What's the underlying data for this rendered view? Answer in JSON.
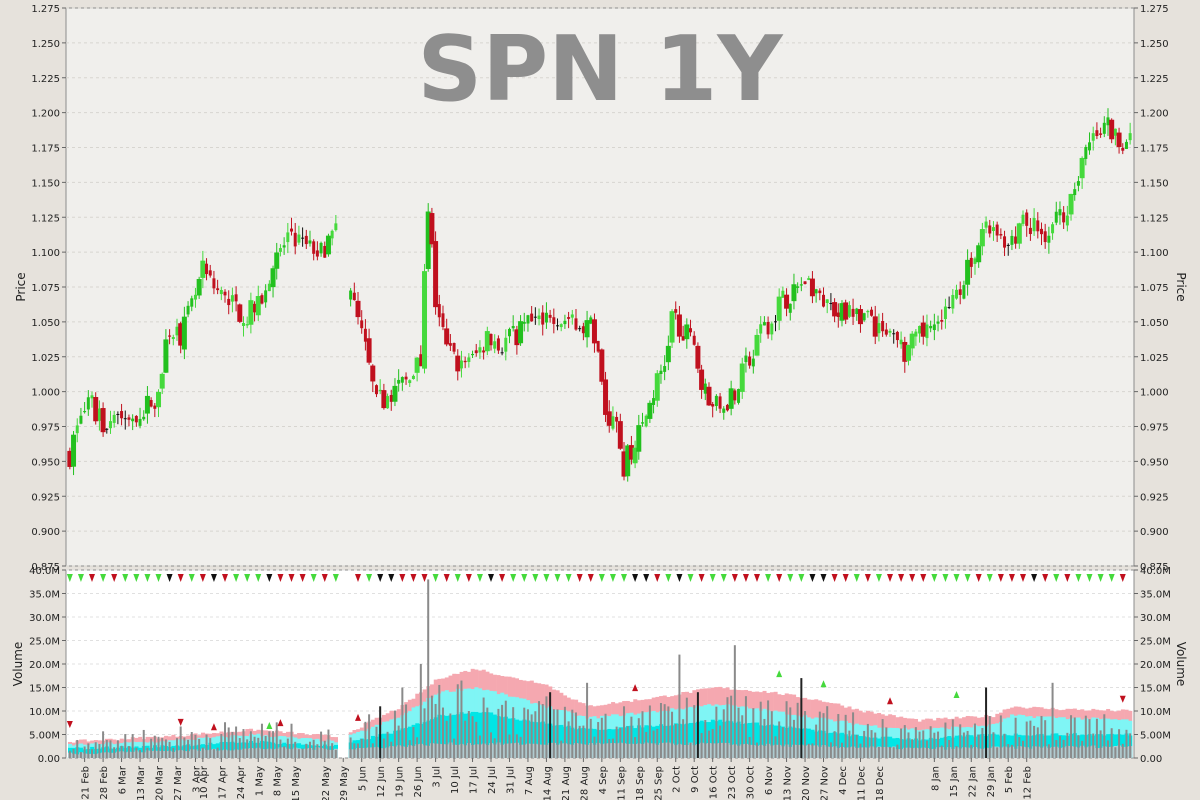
{
  "chart_data": [
    {
      "type": "candlestick",
      "title": "SPN 1Y",
      "ylabel": "Price",
      "ylim": [
        0.875,
        1.275
      ],
      "yticks": [
        "0.875",
        "0.900",
        "0.925",
        "0.950",
        "0.975",
        "1.000",
        "1.025",
        "1.050",
        "1.075",
        "1.100",
        "1.125",
        "1.150",
        "1.175",
        "1.200",
        "1.225",
        "1.250",
        "1.275"
      ],
      "grid": true,
      "ohlc_close_path": [
        [
          0,
          0.955
        ],
        [
          3,
          0.985
        ],
        [
          6,
          0.99
        ],
        [
          9,
          0.975
        ],
        [
          12,
          0.985
        ],
        [
          15,
          0.98
        ],
        [
          18,
          0.985
        ],
        [
          21,
          0.99
        ],
        [
          24,
          1.0
        ],
        [
          27,
          1.045
        ],
        [
          30,
          1.04
        ],
        [
          33,
          1.06
        ],
        [
          36,
          1.085
        ],
        [
          39,
          1.075
        ],
        [
          42,
          1.065
        ],
        [
          45,
          1.06
        ],
        [
          48,
          1.055
        ],
        [
          51,
          1.06
        ],
        [
          54,
          1.085
        ],
        [
          57,
          1.1
        ],
        [
          60,
          1.115
        ],
        [
          63,
          1.105
        ],
        [
          66,
          1.1
        ],
        [
          69,
          1.105
        ],
        [
          72,
          1.115
        ],
        [
          77,
          1.06
        ],
        [
          80,
          1.03
        ],
        [
          83,
          0.99
        ],
        [
          86,
          1.0
        ],
        [
          89,
          1.0
        ],
        [
          92,
          1.015
        ],
        [
          95,
          1.02
        ],
        [
          97,
          1.135
        ],
        [
          99,
          1.065
        ],
        [
          102,
          1.03
        ],
        [
          105,
          1.02
        ],
        [
          108,
          1.02
        ],
        [
          111,
          1.03
        ],
        [
          114,
          1.04
        ],
        [
          117,
          1.035
        ],
        [
          120,
          1.04
        ],
        [
          123,
          1.045
        ],
        [
          126,
          1.05
        ],
        [
          129,
          1.06
        ],
        [
          132,
          1.055
        ],
        [
          135,
          1.045
        ],
        [
          138,
          1.05
        ],
        [
          141,
          1.045
        ],
        [
          143,
          1.025
        ],
        [
          145,
          0.985
        ],
        [
          148,
          0.975
        ],
        [
          150,
          0.945
        ],
        [
          152,
          0.96
        ],
        [
          155,
          0.975
        ],
        [
          158,
          1.0
        ],
        [
          161,
          1.02
        ],
        [
          163,
          1.055
        ],
        [
          166,
          1.045
        ],
        [
          169,
          1.03
        ],
        [
          172,
          1.0
        ],
        [
          175,
          0.99
        ],
        [
          178,
          0.995
        ],
        [
          181,
          1.005
        ],
        [
          184,
          1.025
        ],
        [
          187,
          1.04
        ],
        [
          190,
          1.055
        ],
        [
          193,
          1.065
        ],
        [
          196,
          1.07
        ],
        [
          199,
          1.08
        ],
        [
          202,
          1.075
        ],
        [
          205,
          1.065
        ],
        [
          208,
          1.055
        ],
        [
          211,
          1.06
        ],
        [
          214,
          1.055
        ],
        [
          217,
          1.05
        ],
        [
          220,
          1.04
        ],
        [
          223,
          1.035
        ],
        [
          226,
          1.03
        ],
        [
          229,
          1.035
        ],
        [
          232,
          1.045
        ],
        [
          235,
          1.05
        ],
        [
          238,
          1.06
        ],
        [
          241,
          1.075
        ],
        [
          244,
          1.095
        ],
        [
          247,
          1.11
        ],
        [
          250,
          1.12
        ],
        [
          253,
          1.11
        ],
        [
          256,
          1.115
        ],
        [
          259,
          1.12
        ],
        [
          262,
          1.115
        ],
        [
          265,
          1.115
        ],
        [
          268,
          1.125
        ],
        [
          271,
          1.14
        ],
        [
          274,
          1.165
        ],
        [
          277,
          1.18
        ],
        [
          280,
          1.19
        ],
        [
          283,
          1.185
        ],
        [
          286,
          1.18
        ]
      ],
      "ohlc_seed": 7,
      "ohlc_count": 288,
      "ohlc_gap_after": [
        72
      ],
      "ohlc_gap_bars": 3
    },
    {
      "type": "bar",
      "ylabel": "Volume",
      "ylim": [
        0,
        40
      ],
      "unit": "M",
      "yticks": [
        "0.00",
        "5.00M",
        "10.0M",
        "15.0M",
        "20.0M",
        "25.0M",
        "30.0M",
        "35.0M",
        "40.0M"
      ],
      "volume_base_path": [
        [
          0,
          3
        ],
        [
          25,
          4
        ],
        [
          50,
          5
        ],
        [
          72,
          3.5
        ],
        [
          77,
          5
        ],
        [
          90,
          8
        ],
        [
          100,
          10
        ],
        [
          120,
          9
        ],
        [
          150,
          6
        ],
        [
          175,
          9
        ],
        [
          200,
          7
        ],
        [
          230,
          4.5
        ],
        [
          260,
          6
        ],
        [
          288,
          5.5
        ]
      ],
      "volume_spikes": [
        [
          97,
          38
        ],
        [
          95,
          20
        ],
        [
          84,
          11
        ],
        [
          90,
          15
        ],
        [
          108,
          10
        ],
        [
          130,
          14
        ],
        [
          140,
          16
        ],
        [
          150,
          11
        ],
        [
          165,
          22
        ],
        [
          170,
          14
        ],
        [
          180,
          24
        ],
        [
          198,
          17
        ],
        [
          226,
          7
        ],
        [
          248,
          15
        ],
        [
          266,
          16
        ],
        [
          275,
          9
        ],
        [
          286,
          6
        ]
      ],
      "band_outer_path": [
        [
          0,
          3.5
        ],
        [
          25,
          4.5
        ],
        [
          50,
          6
        ],
        [
          72,
          4.5
        ],
        [
          77,
          6
        ],
        [
          90,
          11
        ],
        [
          100,
          17
        ],
        [
          110,
          19
        ],
        [
          120,
          17
        ],
        [
          128,
          16
        ],
        [
          140,
          11
        ],
        [
          160,
          13
        ],
        [
          175,
          15
        ],
        [
          190,
          14
        ],
        [
          205,
          12
        ],
        [
          215,
          10
        ],
        [
          230,
          8
        ],
        [
          250,
          9
        ],
        [
          255,
          11
        ],
        [
          265,
          10.5
        ],
        [
          288,
          10
        ]
      ],
      "band_mid_path": [
        [
          0,
          2.8
        ],
        [
          25,
          3.5
        ],
        [
          50,
          5
        ],
        [
          72,
          3.5
        ],
        [
          77,
          5
        ],
        [
          90,
          9
        ],
        [
          100,
          14
        ],
        [
          110,
          15
        ],
        [
          120,
          13
        ],
        [
          140,
          8.5
        ],
        [
          160,
          10
        ],
        [
          175,
          11.5
        ],
        [
          190,
          10
        ],
        [
          215,
          7
        ],
        [
          230,
          6
        ],
        [
          250,
          7
        ],
        [
          255,
          9
        ],
        [
          288,
          8
        ]
      ],
      "band_inner_path": [
        [
          0,
          2
        ],
        [
          25,
          2.5
        ],
        [
          50,
          3.5
        ],
        [
          72,
          2.5
        ],
        [
          77,
          3.5
        ],
        [
          90,
          6
        ],
        [
          100,
          9
        ],
        [
          110,
          10
        ],
        [
          120,
          8.5
        ],
        [
          140,
          6
        ],
        [
          160,
          7
        ],
        [
          175,
          8
        ],
        [
          190,
          7
        ],
        [
          215,
          4.5
        ],
        [
          230,
          4
        ],
        [
          250,
          5
        ],
        [
          288,
          5
        ]
      ],
      "band_low_path": [
        [
          0,
          1
        ],
        [
          25,
          1.5
        ],
        [
          50,
          2
        ],
        [
          77,
          2
        ],
        [
          100,
          3
        ],
        [
          120,
          3
        ],
        [
          175,
          3
        ],
        [
          230,
          2
        ],
        [
          288,
          2.5
        ]
      ]
    }
  ],
  "x_date_labels": [
    "21 Feb",
    "28 Feb",
    "6 Mar",
    "13 Mar",
    "20 Mar",
    "27 Mar",
    "3 Apr",
    "10 Apr",
    "17 Apr",
    "24 Apr",
    "1 May",
    "8 May",
    "15 May",
    "22 May",
    "29 May",
    "5 Jun",
    "12 Jun",
    "19 Jun",
    "26 Jun",
    "3 Jul",
    "10 Jul",
    "17 Jul",
    "24 Jul",
    "31 Jul",
    "7 Aug",
    "14 Aug",
    "21 Aug",
    "28 Aug",
    "4 Sep",
    "11 Sep",
    "18 Sep",
    "25 Sep",
    "2 Oct",
    "9 Oct",
    "16 Oct",
    "23 Oct",
    "30 Oct",
    "6 Nov",
    "13 Nov",
    "20 Nov",
    "27 Nov",
    "4 Dec",
    "11 Dec",
    "18 Dec",
    "8 Jan",
    "15 Jan",
    "22 Jan",
    "29 Jan",
    "5 Feb",
    "12 Feb"
  ],
  "x_date_bar_index": [
    4,
    9,
    14,
    19,
    24,
    29,
    34,
    36,
    41,
    46,
    51,
    56,
    61,
    69,
    74,
    79,
    84,
    89,
    94,
    99,
    104,
    109,
    114,
    119,
    124,
    129,
    134,
    139,
    144,
    149,
    154,
    159,
    164,
    169,
    174,
    179,
    184,
    189,
    194,
    199,
    204,
    209,
    214,
    219,
    234,
    239,
    244,
    249,
    254,
    259
  ],
  "colors": {
    "up": "#22c01e",
    "up_light": "#45d93c",
    "down": "#c0101e",
    "neutral": "#111111",
    "band_outer": "#f5a8b0",
    "band_mid": "#7ff5f5",
    "band_inner": "#00e5e5",
    "band_low": "#b0cbd0",
    "volume_bar": "#8a8a8a",
    "plot_bg": "#f0efec",
    "volume_bg": "#ffffff",
    "frame_bg": "#e6e2dc",
    "title": "#8e8e8e"
  }
}
